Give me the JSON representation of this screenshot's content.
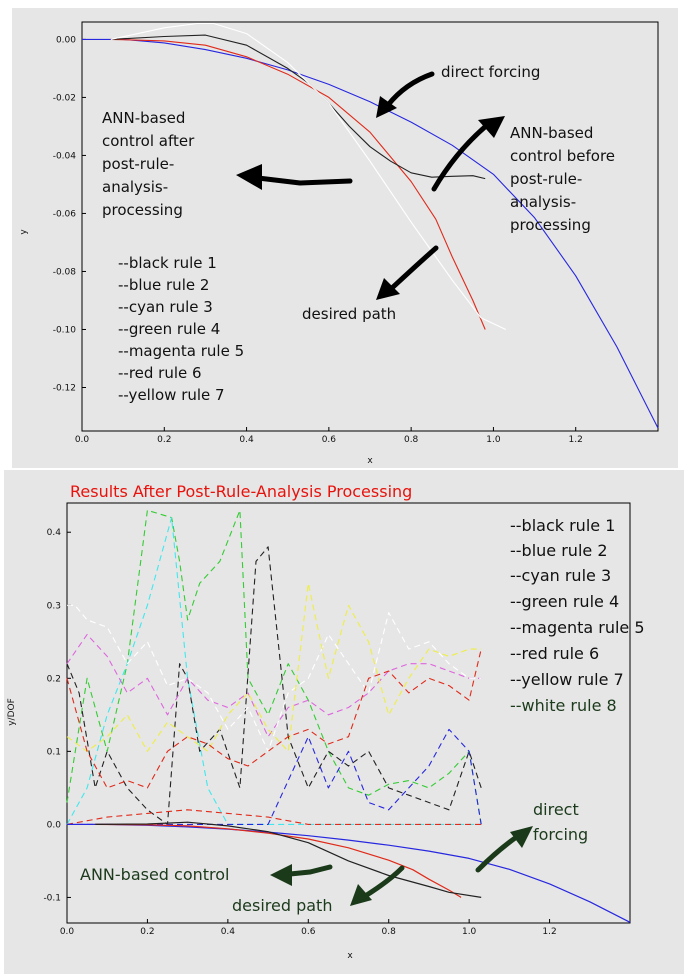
{
  "colors": {
    "black": "#222222",
    "blue": "#2727e0",
    "cyan": "#3ee8ee",
    "green": "#33cc33",
    "magenta": "#dd66dd",
    "red": "#e02a1a",
    "yellow": "#eeee44",
    "white": "#ffffff",
    "panel_bg": "#e6e6e6",
    "title_red": "#e8120c"
  },
  "chart_data": [
    {
      "type": "line",
      "xlabel": "x",
      "ylabel": "y",
      "xlim": [
        0,
        1.4
      ],
      "ylim": [
        -0.135,
        0.006
      ],
      "xticks": [
        "0.0",
        "0.2",
        "0.4",
        "0.6",
        "0.8",
        "1.0",
        "1.2"
      ],
      "yticks": [
        "0.00",
        "-0.02",
        "-0.04",
        "-0.06",
        "-0.08",
        "-0.10",
        "-0.12"
      ],
      "grid": false,
      "series": [
        {
          "color_key": "blue",
          "x": [
            0,
            0.1,
            0.2,
            0.3,
            0.4,
            0.5,
            0.6,
            0.7,
            0.8,
            0.9,
            1.0,
            1.1,
            1.2,
            1.3,
            1.4
          ],
          "y": [
            0,
            0,
            -0.0012,
            -0.0035,
            -0.0065,
            -0.0105,
            -0.0155,
            -0.0215,
            -0.0285,
            -0.0365,
            -0.0465,
            -0.0615,
            -0.0815,
            -0.106,
            -0.134
          ]
        },
        {
          "color_key": "red",
          "x": [
            0.07,
            0.2,
            0.3,
            0.4,
            0.5,
            0.6,
            0.7,
            0.8,
            0.86,
            0.9,
            0.95,
            0.98
          ],
          "y": [
            0,
            -0.0005,
            -0.002,
            -0.006,
            -0.012,
            -0.02,
            -0.032,
            -0.049,
            -0.062,
            -0.075,
            -0.09,
            -0.1
          ]
        },
        {
          "color_key": "black",
          "x": [
            0.07,
            0.2,
            0.3,
            0.4,
            0.5,
            0.55,
            0.6,
            0.65,
            0.7,
            0.75,
            0.8,
            0.85,
            0.9,
            0.95,
            0.98
          ],
          "y": [
            0,
            0.001,
            0.0015,
            -0.002,
            -0.01,
            -0.015,
            -0.022,
            -0.03,
            -0.037,
            -0.042,
            -0.046,
            -0.0475,
            -0.0472,
            -0.047,
            -0.048
          ]
        },
        {
          "color_key": "white",
          "x": [
            0.07,
            0.2,
            0.28,
            0.32,
            0.4,
            0.5,
            0.6,
            0.7,
            0.8,
            0.9,
            0.97,
            1.03
          ],
          "y": [
            0,
            0.004,
            0.0055,
            0.0055,
            0.002,
            -0.008,
            -0.022,
            -0.042,
            -0.063,
            -0.083,
            -0.096,
            -0.1
          ]
        }
      ],
      "annotations": [
        {
          "text": "direct forcing"
        },
        {
          "lines": [
            "ANN-based",
            "control after",
            "post-rule-",
            "analysis-",
            "processing"
          ]
        },
        {
          "lines": [
            "ANN-based",
            "control before",
            "post-rule-",
            "analysis-",
            "processing"
          ]
        },
        {
          "text": "desired path"
        }
      ],
      "legend": [
        "--black rule 1",
        "--blue rule 2",
        "--cyan rule 3",
        "--green rule 4",
        "--magenta rule 5",
        "--red rule 6",
        "--yellow rule 7"
      ]
    },
    {
      "type": "line",
      "title": "Results After Post-Rule-Analysis Processing",
      "xlabel": "x",
      "ylabel": "y/DOF",
      "xlim": [
        0,
        1.4
      ],
      "ylim": [
        -0.135,
        0.44
      ],
      "xticks": [
        "0.0",
        "0.2",
        "0.4",
        "0.6",
        "0.8",
        "1.0",
        "1.2"
      ],
      "yticks": [
        "0.4",
        "0.3",
        "0.2",
        "0.1",
        "0.0",
        "-0.1"
      ],
      "grid": false,
      "dashed_series": [
        {
          "color_key": "green",
          "x": [
            0,
            0.05,
            0.1,
            0.15,
            0.2,
            0.26,
            0.28,
            0.3,
            0.33,
            0.38,
            0.43,
            0.45,
            0.5,
            0.55,
            0.6,
            0.65,
            0.7,
            0.75,
            0.8,
            0.85,
            0.9,
            0.95,
            1.0,
            1.03
          ],
          "y": [
            0.03,
            0.2,
            0.1,
            0.22,
            0.43,
            0.42,
            0.36,
            0.28,
            0.33,
            0.36,
            0.43,
            0.2,
            0.15,
            0.22,
            0.17,
            0.1,
            0.05,
            0.04,
            0.055,
            0.06,
            0.05,
            0.07,
            0.1,
            0.0
          ]
        },
        {
          "color_key": "cyan",
          "x": [
            0,
            0.05,
            0.1,
            0.15,
            0.2,
            0.26,
            0.3,
            0.35,
            0.4,
            0.5,
            0.6,
            0.7,
            0.8,
            0.9,
            1.0,
            1.03
          ],
          "y": [
            0.0,
            0.05,
            0.15,
            0.22,
            0.3,
            0.42,
            0.2,
            0.05,
            0.0,
            0.0,
            0.0,
            0.0,
            0.0,
            0.0,
            0.0,
            0.0
          ]
        },
        {
          "color_key": "black",
          "x": [
            0,
            0.03,
            0.07,
            0.1,
            0.15,
            0.2,
            0.25,
            0.28,
            0.3,
            0.33,
            0.38,
            0.43,
            0.47,
            0.5,
            0.55,
            0.6,
            0.65,
            0.7,
            0.75,
            0.8,
            0.85,
            0.9,
            0.95,
            1.0,
            1.03
          ],
          "y": [
            0.22,
            0.18,
            0.05,
            0.1,
            0.05,
            0.02,
            0.0,
            0.22,
            0.2,
            0.1,
            0.13,
            0.05,
            0.36,
            0.38,
            0.12,
            0.05,
            0.1,
            0.08,
            0.1,
            0.05,
            0.04,
            0.03,
            0.02,
            0.1,
            0.05
          ]
        },
        {
          "color_key": "magenta",
          "x": [
            0,
            0.05,
            0.1,
            0.15,
            0.2,
            0.25,
            0.3,
            0.35,
            0.4,
            0.45,
            0.5,
            0.55,
            0.6,
            0.65,
            0.7,
            0.75,
            0.8,
            0.85,
            0.9,
            0.95,
            1.0,
            1.03
          ],
          "y": [
            0.22,
            0.26,
            0.23,
            0.18,
            0.2,
            0.15,
            0.2,
            0.17,
            0.16,
            0.18,
            0.12,
            0.16,
            0.17,
            0.15,
            0.16,
            0.18,
            0.21,
            0.22,
            0.22,
            0.21,
            0.2,
            0.2
          ]
        },
        {
          "color_key": "white",
          "x": [
            0,
            0.02,
            0.05,
            0.1,
            0.15,
            0.2,
            0.25,
            0.3,
            0.35,
            0.4,
            0.45,
            0.5,
            0.55,
            0.6,
            0.65,
            0.7,
            0.75,
            0.8,
            0.85,
            0.9,
            0.95,
            1.0,
            1.03
          ],
          "y": [
            0.3,
            0.3,
            0.28,
            0.27,
            0.22,
            0.25,
            0.19,
            0.2,
            0.18,
            0.13,
            0.16,
            0.1,
            0.18,
            0.2,
            0.26,
            0.22,
            0.18,
            0.29,
            0.24,
            0.25,
            0.22,
            0.2,
            0.2
          ]
        },
        {
          "color_key": "yellow",
          "x": [
            0,
            0.05,
            0.1,
            0.15,
            0.2,
            0.25,
            0.3,
            0.35,
            0.4,
            0.45,
            0.5,
            0.55,
            0.6,
            0.65,
            0.7,
            0.75,
            0.8,
            0.85,
            0.9,
            0.95,
            1.0,
            1.03
          ],
          "y": [
            0.12,
            0.1,
            0.12,
            0.15,
            0.1,
            0.14,
            0.12,
            0.1,
            0.15,
            0.18,
            0.13,
            0.1,
            0.33,
            0.2,
            0.3,
            0.25,
            0.15,
            0.2,
            0.24,
            0.23,
            0.24,
            0.24
          ]
        },
        {
          "color_key": "red",
          "x": [
            0,
            0.05,
            0.1,
            0.15,
            0.2,
            0.25,
            0.3,
            0.35,
            0.4,
            0.45,
            0.5,
            0.55,
            0.6,
            0.65,
            0.7,
            0.75,
            0.8,
            0.85,
            0.9,
            0.95,
            1.0,
            1.03
          ],
          "y": [
            0.2,
            0.1,
            0.05,
            0.06,
            0.05,
            0.1,
            0.12,
            0.11,
            0.09,
            0.08,
            0.1,
            0.12,
            0.13,
            0.11,
            0.12,
            0.2,
            0.21,
            0.18,
            0.2,
            0.19,
            0.17,
            0.24
          ]
        },
        {
          "color_key": "blue",
          "x": [
            0,
            0.2,
            0.4,
            0.5,
            0.55,
            0.6,
            0.65,
            0.7,
            0.75,
            0.8,
            0.85,
            0.9,
            0.95,
            1.0,
            1.03
          ],
          "y": [
            0.0,
            0.0,
            0.0,
            0.0,
            0.06,
            0.12,
            0.05,
            0.1,
            0.03,
            0.02,
            0.05,
            0.08,
            0.13,
            0.1,
            0.0
          ]
        },
        {
          "color_key": "red",
          "x": [
            0,
            0.1,
            0.2,
            0.3,
            0.4,
            0.5,
            0.6,
            0.7,
            0.8,
            0.9,
            1.0,
            1.03
          ],
          "y": [
            0.0,
            0.01,
            0.015,
            0.02,
            0.015,
            0.01,
            0.0,
            0.0,
            0.0,
            0.0,
            0.0,
            0.0
          ]
        }
      ],
      "solid_series": [
        {
          "color_key": "blue",
          "x": [
            0,
            0.1,
            0.2,
            0.3,
            0.4,
            0.5,
            0.6,
            0.7,
            0.8,
            0.9,
            1.0,
            1.1,
            1.2,
            1.3,
            1.4
          ],
          "y": [
            0,
            0,
            -0.0012,
            -0.0035,
            -0.0065,
            -0.0105,
            -0.0155,
            -0.0215,
            -0.0285,
            -0.0365,
            -0.0465,
            -0.0615,
            -0.0815,
            -0.106,
            -0.134
          ]
        },
        {
          "color_key": "red",
          "x": [
            0.07,
            0.2,
            0.3,
            0.4,
            0.5,
            0.6,
            0.7,
            0.8,
            0.86,
            0.9,
            0.95,
            0.98
          ],
          "y": [
            0,
            -0.0005,
            -0.002,
            -0.006,
            -0.012,
            -0.02,
            -0.032,
            -0.049,
            -0.062,
            -0.075,
            -0.09,
            -0.1
          ]
        },
        {
          "color_key": "black",
          "x": [
            0.07,
            0.2,
            0.3,
            0.4,
            0.5,
            0.6,
            0.7,
            0.8,
            0.9,
            0.95,
            1.03
          ],
          "y": [
            0,
            0.0005,
            0.003,
            -0.002,
            -0.01,
            -0.025,
            -0.05,
            -0.07,
            -0.085,
            -0.093,
            -0.1
          ]
        }
      ],
      "annotations": [
        {
          "lines": [
            "direct",
            "forcing"
          ]
        },
        {
          "text": "ANN-based control"
        },
        {
          "text": "desired path"
        }
      ],
      "legend": [
        "--black rule 1",
        "--blue rule 2",
        "--cyan rule 3",
        "--green rule 4",
        "--magenta rule 5",
        "--red rule 6",
        "--yellow rule 7",
        "--white rule 8"
      ]
    }
  ]
}
